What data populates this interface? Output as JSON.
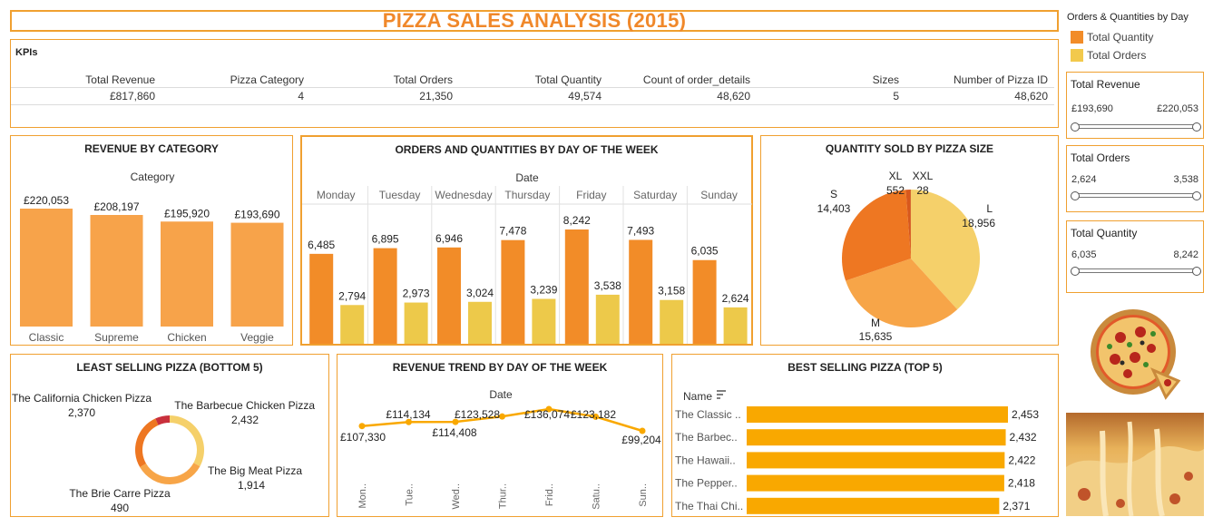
{
  "title": "PIZZA SALES ANALYSIS (2015)",
  "kpis": {
    "label": "KPIs",
    "columns": [
      {
        "header": "Total Revenue",
        "value": "£817,860"
      },
      {
        "header": "Pizza Category",
        "value": "4"
      },
      {
        "header": "Total Orders",
        "value": "21,350"
      },
      {
        "header": "Total Quantity",
        "value": "49,574"
      },
      {
        "header": "Count of order_details",
        "value": "48,620"
      },
      {
        "header": "Sizes",
        "value": "5"
      },
      {
        "header": "Number of Pizza ID",
        "value": "48,620"
      }
    ]
  },
  "legend": {
    "title": "Orders & Quantities by Day",
    "items": [
      {
        "label": "Total Quantity",
        "color": "#f28c28"
      },
      {
        "label": "Total Orders",
        "color": "#f2c94c"
      }
    ]
  },
  "filters": [
    {
      "title": "Total Revenue",
      "min": "£193,690",
      "max": "£220,053"
    },
    {
      "title": "Total Orders",
      "min": "2,624",
      "max": "3,538"
    },
    {
      "title": "Total Quantity",
      "min": "6,035",
      "max": "8,242"
    }
  ],
  "colors": {
    "accent": "#f0a030",
    "title": "#f0882a",
    "quantity": "#f28c28",
    "orders": "#edc94a",
    "category": "#f7a34a",
    "best": "#f9a800"
  },
  "chart_data": [
    {
      "type": "bar",
      "title": "REVENUE BY CATEGORY",
      "xlabel": "Category",
      "categories": [
        "Classic",
        "Supreme",
        "Chicken",
        "Veggie"
      ],
      "values": [
        220053,
        208197,
        195920,
        193690
      ],
      "labels": [
        "£220,053",
        "£208,197",
        "£195,920",
        "£193,690"
      ]
    },
    {
      "type": "bar",
      "title": "ORDERS AND QUANTITIES BY DAY OF THE WEEK",
      "xlabel": "Date",
      "categories": [
        "Monday",
        "Tuesday",
        "Wednesday",
        "Thursday",
        "Friday",
        "Saturday",
        "Sunday"
      ],
      "series": [
        {
          "name": "Total Quantity",
          "values": [
            6485,
            6895,
            6946,
            7478,
            8242,
            7493,
            6035
          ],
          "labels": [
            "6,485",
            "6,895",
            "6,946",
            "7,478",
            "8,242",
            "7,493",
            "6,035"
          ]
        },
        {
          "name": "Total Orders",
          "values": [
            2794,
            2973,
            3024,
            3239,
            3538,
            3158,
            2624
          ],
          "labels": [
            "2,794",
            "2,973",
            "3,024",
            "3,239",
            "3,538",
            "3,158",
            "2,624"
          ]
        }
      ]
    },
    {
      "type": "pie",
      "title": "QUANTITY SOLD BY PIZZA SIZE",
      "categories": [
        "L",
        "M",
        "S",
        "XL",
        "XXL"
      ],
      "values": [
        18956,
        15635,
        14403,
        552,
        28
      ],
      "labels": [
        "18,956",
        "15,635",
        "14,403",
        "552",
        "28"
      ],
      "colors": [
        "#f5d06a",
        "#f7a548",
        "#ee7722",
        "#d8581c",
        "#b8420f"
      ]
    },
    {
      "type": "pie",
      "title": "LEAST SELLING PIZZA (BOTTOM 5)",
      "categories": [
        "The California Chicken Pizza",
        "The Barbecue Chicken Pizza",
        "The Big Meat Pizza",
        "The Brie Carre Pizza"
      ],
      "values": [
        2370,
        2432,
        1914,
        490
      ],
      "labels": [
        "2,370",
        "2,432",
        "1,914",
        "490"
      ],
      "colors": [
        "#f5d06a",
        "#f7a548",
        "#ee7722",
        "#c9303c"
      ]
    },
    {
      "type": "line",
      "title": "REVENUE TREND BY DAY OF THE WEEK",
      "xlabel": "Date",
      "categories": [
        "Mon..",
        "Tue..",
        "Wed..",
        "Thur..",
        "Frid..",
        "Satu..",
        "Sun.."
      ],
      "values": [
        107330,
        114134,
        114408,
        123528,
        136074,
        123182,
        99204
      ],
      "labels": [
        "£107,330",
        "£114,134",
        "£114,408",
        "£123,528",
        "£136,074",
        "£123,182",
        "£99,204"
      ]
    },
    {
      "type": "bar",
      "title": "BEST SELLING PIZZA (TOP 5)",
      "ylabel": "Name",
      "categories": [
        "The Classic ..",
        "The Barbec..",
        "The Hawaii..",
        "The Pepper..",
        "The Thai Chi.."
      ],
      "values": [
        2453,
        2432,
        2422,
        2418,
        2371
      ],
      "labels": [
        "2,453",
        "2,432",
        "2,422",
        "2,418",
        "2,371"
      ]
    }
  ]
}
